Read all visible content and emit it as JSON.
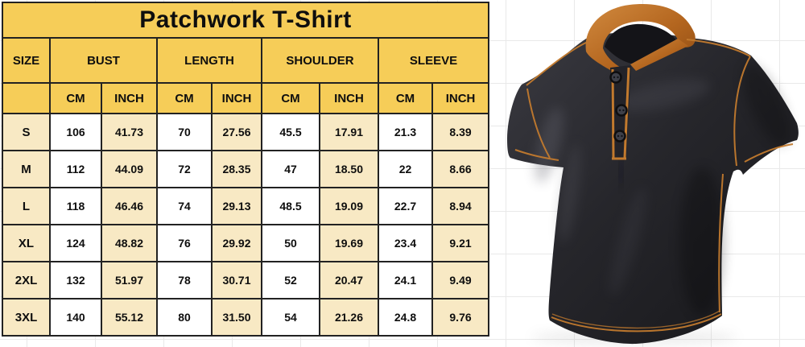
{
  "chart_data": {
    "type": "table",
    "title": "Patchwork T-Shirt",
    "groups": [
      {
        "label": "SIZE",
        "span": 1
      },
      {
        "label": "BUST",
        "span": 2
      },
      {
        "label": "LENGTH",
        "span": 2
      },
      {
        "label": "SHOULDER",
        "span": 2
      },
      {
        "label": "SLEEVE",
        "span": 2
      }
    ],
    "units": [
      "CM",
      "INCH",
      "CM",
      "INCH",
      "CM",
      "INCH",
      "CM",
      "INCH"
    ],
    "columns": [
      "SIZE",
      "BUST CM",
      "BUST INCH",
      "LENGTH CM",
      "LENGTH INCH",
      "SHOULDER CM",
      "SHOULDER INCH",
      "SLEEVE CM",
      "SLEEVE INCH"
    ],
    "rows": [
      {
        "size": "S",
        "values": [
          "106",
          "41.73",
          "70",
          "27.56",
          "45.5",
          "17.91",
          "21.3",
          "8.39"
        ]
      },
      {
        "size": "M",
        "values": [
          "112",
          "44.09",
          "72",
          "28.35",
          "47",
          "18.50",
          "22",
          "8.66"
        ]
      },
      {
        "size": "L",
        "values": [
          "118",
          "46.46",
          "74",
          "29.13",
          "48.5",
          "19.09",
          "22.7",
          "8.94"
        ]
      },
      {
        "size": "XL",
        "values": [
          "124",
          "48.82",
          "76",
          "29.92",
          "50",
          "19.69",
          "23.4",
          "9.21"
        ]
      },
      {
        "size": "2XL",
        "values": [
          "132",
          "51.97",
          "78",
          "30.71",
          "52",
          "20.47",
          "24.1",
          "9.49"
        ]
      },
      {
        "size": "3XL",
        "values": [
          "140",
          "55.12",
          "80",
          "31.50",
          "54",
          "21.26",
          "24.8",
          "9.76"
        ]
      }
    ],
    "layout": {
      "grid": "spreadsheet gridlines behind table",
      "legend": "none"
    }
  },
  "product": {
    "description": "black short-sleeve henley t-shirt with caramel stand-up collar, three buttons and orange contrast stitching"
  },
  "colors": {
    "header_yellow": "#f6cd58",
    "row_cream": "#f8e9c4",
    "row_white": "#ffffff",
    "table_border": "#222222",
    "grid_line": "#e9e9e9",
    "shirt_black": "#26262b",
    "collar_caramel": "#b4661f",
    "stitch_orange": "#c27a2e"
  }
}
